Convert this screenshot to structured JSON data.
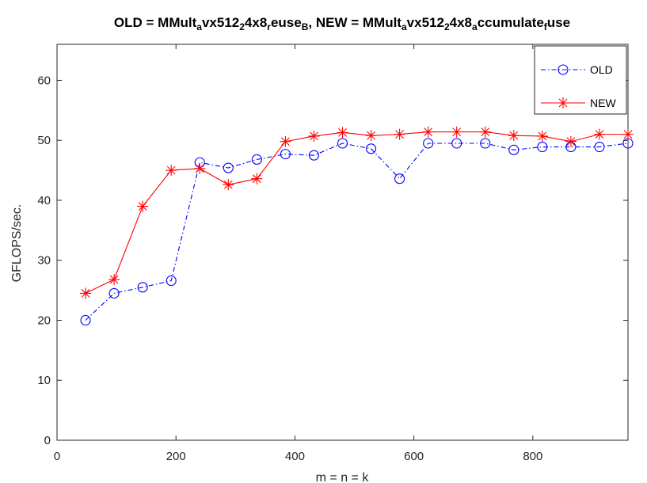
{
  "chart_data": {
    "type": "line",
    "title": {
      "parts": [
        {
          "text": "OLD = MMult",
          "sub": false
        },
        {
          "text": "a",
          "sub": true
        },
        {
          "text": "vx512",
          "sub": false
        },
        {
          "text": "2",
          "sub": true
        },
        {
          "text": "4x8",
          "sub": false
        },
        {
          "text": "r",
          "sub": true
        },
        {
          "text": "euse",
          "sub": false
        },
        {
          "text": "B",
          "sub": true
        },
        {
          "text": ", NEW = MMult",
          "sub": false
        },
        {
          "text": "a",
          "sub": true
        },
        {
          "text": "vx512",
          "sub": false
        },
        {
          "text": "2",
          "sub": true
        },
        {
          "text": "4x8",
          "sub": false
        },
        {
          "text": "a",
          "sub": true
        },
        {
          "text": "ccumulate",
          "sub": false
        },
        {
          "text": "f",
          "sub": true
        },
        {
          "text": "use",
          "sub": false
        }
      ]
    },
    "xlabel": "m = n = k",
    "ylabel": "GFLOPS/sec.",
    "xlim": [
      0,
      960
    ],
    "ylim": [
      0,
      66
    ],
    "xticks": [
      0,
      200,
      400,
      600,
      800
    ],
    "yticks": [
      0,
      10,
      20,
      30,
      40,
      50,
      60
    ],
    "grid": false,
    "legend_position": "top-right",
    "x": [
      48,
      96,
      144,
      192,
      240,
      288,
      336,
      384,
      432,
      480,
      528,
      576,
      624,
      672,
      720,
      768,
      816,
      864,
      912,
      960
    ],
    "series": [
      {
        "name": "OLD",
        "color": "#0000ff",
        "line_style": "dash-dot",
        "marker": "circle",
        "values": [
          20.0,
          24.5,
          25.5,
          26.6,
          46.3,
          45.4,
          46.8,
          47.7,
          47.5,
          49.5,
          48.6,
          43.6,
          49.5,
          49.5,
          49.5,
          48.4,
          48.9,
          48.9,
          48.9,
          49.5
        ]
      },
      {
        "name": "NEW",
        "color": "#ff0000",
        "line_style": "solid",
        "marker": "asterisk",
        "values": [
          24.5,
          26.8,
          39.0,
          45.0,
          45.3,
          42.6,
          43.6,
          49.8,
          50.7,
          51.3,
          50.8,
          51.0,
          51.4,
          51.4,
          51.4,
          50.8,
          50.7,
          49.8,
          51.0,
          51.0
        ]
      }
    ]
  }
}
